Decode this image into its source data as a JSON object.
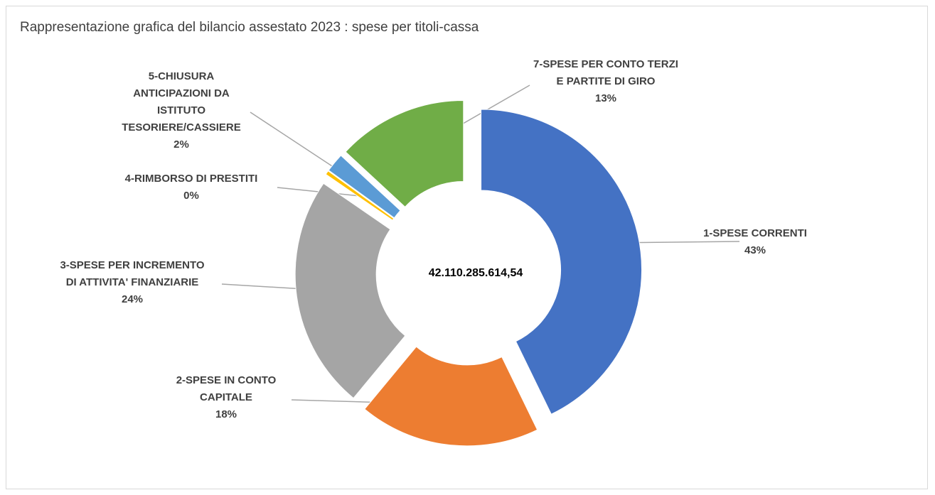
{
  "chart_data": {
    "type": "pie",
    "title": "Rappresentazione grafica del bilancio assestato 2023 : spese per titoli-cassa",
    "center_label": "42.110.285.614,54",
    "donut": true,
    "legend": "none",
    "slices": [
      {
        "label_lines": [
          "1-SPESE CORRENTI"
        ],
        "percent_label": "43%",
        "value": 42.8,
        "color": "#4472C4",
        "exploded": true
      },
      {
        "label_lines": [
          "2-SPESE IN CONTO",
          "CAPITALE"
        ],
        "percent_label": "18%",
        "value": 18.2,
        "color": "#ED7D31",
        "exploded": true
      },
      {
        "label_lines": [
          "3-SPESE PER INCREMENTO",
          "DI ATTIVITA' FINANZIARIE"
        ],
        "percent_label": "24%",
        "value": 23.6,
        "color": "#A5A5A5",
        "exploded": true
      },
      {
        "label_lines": [
          "4-RIMBORSO DI PRESTITI"
        ],
        "percent_label": "0%",
        "value": 0.4,
        "color": "#FFC000",
        "exploded": true
      },
      {
        "label_lines": [
          "5-CHIUSURA",
          "ANTICIPAZIONI DA",
          "ISTITUTO",
          "TESORIERE/CASSIERE"
        ],
        "percent_label": "2%",
        "value": 1.9,
        "color": "#5B9BD5",
        "exploded": true
      },
      {
        "label_lines": [
          "7-SPESE PER CONTO TERZI",
          "E PARTITE DI GIRO"
        ],
        "percent_label": "13%",
        "value": 13.1,
        "color": "#70AD47",
        "exploded": true
      }
    ]
  }
}
